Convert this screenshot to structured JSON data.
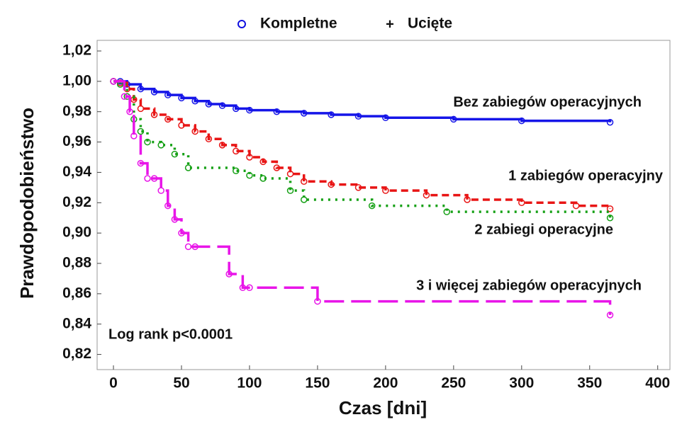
{
  "chart_data": {
    "type": "step",
    "legend": [
      "Kompletne",
      "Ucięte"
    ],
    "legend_color": "#1010e0",
    "xlabel": "Czas [dni]",
    "ylabel": "Prawdopodobieństwo",
    "annotation": "Log rank p<0.0001",
    "xlim": [
      -12,
      409
    ],
    "ylim": [
      0.81,
      1.027
    ],
    "xticks": [
      0,
      50,
      100,
      150,
      200,
      250,
      300,
      350,
      400
    ],
    "yticks": [
      {
        "value": 0.82,
        "label": "0,82"
      },
      {
        "value": 0.84,
        "label": "0,84"
      },
      {
        "value": 0.86,
        "label": "0,86"
      },
      {
        "value": 0.88,
        "label": "0,88"
      },
      {
        "value": 0.9,
        "label": "0,90"
      },
      {
        "value": 0.92,
        "label": "0,92"
      },
      {
        "value": 0.94,
        "label": "0,94"
      },
      {
        "value": 0.96,
        "label": "0,96"
      },
      {
        "value": 0.98,
        "label": "0,98"
      },
      {
        "value": 1.0,
        "label": "1,00"
      },
      {
        "value": 1.02,
        "label": "1,02"
      }
    ],
    "series": [
      {
        "name": "Bez zabiegów operacyjnych",
        "color": "#1515e8",
        "dash": "none",
        "x": [
          0,
          5,
          10,
          20,
          30,
          40,
          50,
          60,
          70,
          80,
          90,
          100,
          120,
          140,
          160,
          180,
          200,
          250,
          300,
          365
        ],
        "values": [
          1.0,
          1.0,
          0.998,
          0.995,
          0.993,
          0.991,
          0.989,
          0.987,
          0.985,
          0.984,
          0.982,
          0.981,
          0.98,
          0.979,
          0.978,
          0.977,
          0.976,
          0.975,
          0.974,
          0.973
        ]
      },
      {
        "name": "1 zabiegów operacyjny",
        "color": "#e81515",
        "dash": "10 6",
        "x": [
          0,
          5,
          10,
          15,
          20,
          30,
          40,
          50,
          60,
          70,
          80,
          90,
          100,
          110,
          120,
          130,
          140,
          160,
          180,
          200,
          230,
          260,
          300,
          340,
          365
        ],
        "values": [
          1.0,
          0.999,
          0.995,
          0.988,
          0.982,
          0.978,
          0.975,
          0.971,
          0.967,
          0.962,
          0.958,
          0.954,
          0.95,
          0.947,
          0.943,
          0.939,
          0.934,
          0.932,
          0.93,
          0.928,
          0.925,
          0.922,
          0.92,
          0.918,
          0.916
        ]
      },
      {
        "name": "2 zabiegi operacyjne",
        "color": "#15a015",
        "dash": "3 7",
        "x": [
          0,
          5,
          10,
          15,
          20,
          25,
          35,
          45,
          55,
          90,
          100,
          110,
          130,
          140,
          190,
          245,
          365
        ],
        "values": [
          1.0,
          0.998,
          0.99,
          0.975,
          0.967,
          0.96,
          0.958,
          0.952,
          0.943,
          0.941,
          0.938,
          0.936,
          0.928,
          0.922,
          0.918,
          0.914,
          0.91
        ]
      },
      {
        "name": "3 i więcej zabiegów operacyjnych",
        "color": "#e815e8",
        "dash": "28 10",
        "x": [
          0,
          8,
          12,
          15,
          20,
          25,
          30,
          35,
          40,
          45,
          50,
          55,
          60,
          85,
          95,
          100,
          150,
          365
        ],
        "values": [
          1.0,
          0.99,
          0.98,
          0.964,
          0.946,
          0.936,
          0.936,
          0.928,
          0.918,
          0.909,
          0.9,
          0.891,
          0.891,
          0.873,
          0.864,
          0.864,
          0.855,
          0.846
        ]
      }
    ]
  }
}
